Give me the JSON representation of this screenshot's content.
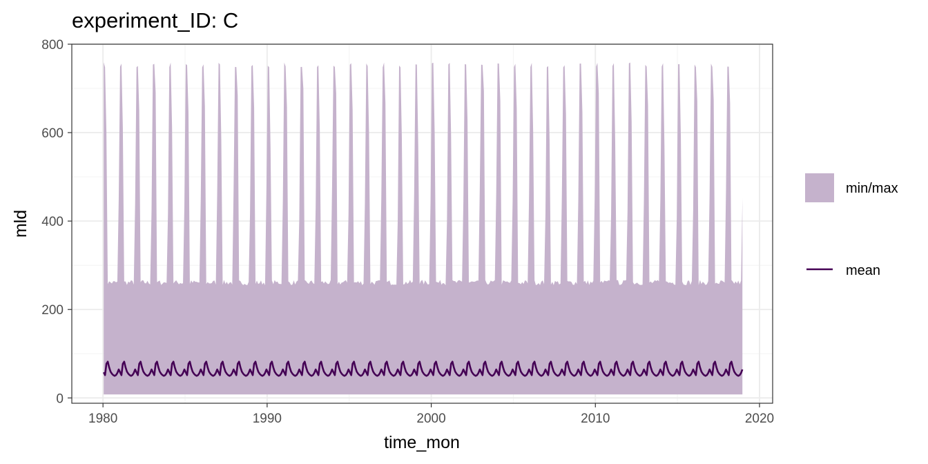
{
  "chart_data": {
    "type": "area",
    "title": "experiment_ID: C",
    "xlabel": "time_mon",
    "ylabel": "mld",
    "x_range": [
      1978.1,
      2020.8
    ],
    "xlim": [
      1980,
      2019
    ],
    "ylim": [
      -12,
      800
    ],
    "x_ticks": [
      1980,
      1990,
      2000,
      2010,
      2020
    ],
    "y_ticks": [
      0,
      200,
      400,
      600,
      800
    ],
    "grid": true,
    "legend_position": "right",
    "seasonal_cycle": {
      "period_years": 1,
      "min_max_band": {
        "lower": 8,
        "upper_peak": 765,
        "upper_trough": 255,
        "color": "#c5b2cc"
      },
      "mean_line": {
        "peak": 82,
        "trough": 50,
        "color": "#440154"
      }
    },
    "legend": [
      {
        "label": "min/max",
        "kind": "fill",
        "color": "#c5b2cc"
      },
      {
        "label": "mean",
        "kind": "line",
        "color": "#440154"
      }
    ]
  }
}
